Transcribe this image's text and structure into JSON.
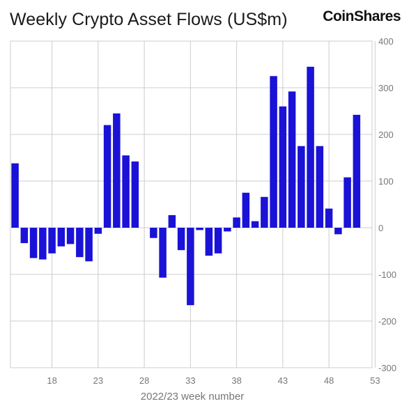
{
  "header": {
    "title": "Weekly Crypto Asset Flows (US$m)",
    "logo_text": "CoinShares"
  },
  "colors": {
    "bar": "#1a12d6",
    "grid": "#cccccc",
    "axis_text": "#777777"
  },
  "chart_data": {
    "type": "bar",
    "title": "Weekly Crypto Asset Flows (US$m)",
    "xlabel": "2022/23 week number",
    "ylabel": "",
    "ylim": [
      -300,
      400
    ],
    "y_ticks": [
      400,
      300,
      200,
      100,
      0,
      -100,
      -200,
      -300
    ],
    "x_tick_labels": [
      "18",
      "23",
      "28",
      "33",
      "38",
      "43",
      "48",
      "53"
    ],
    "categories": [
      14,
      15,
      16,
      17,
      18,
      19,
      20,
      21,
      22,
      23,
      24,
      25,
      26,
      27,
      28,
      29,
      30,
      31,
      32,
      33,
      34,
      35,
      36,
      37,
      38,
      39,
      40,
      41,
      42,
      43,
      44,
      45,
      46,
      47,
      48,
      49,
      50,
      51,
      52
    ],
    "values": [
      138,
      -33,
      -65,
      -68,
      -55,
      -40,
      -35,
      -63,
      -72,
      -13,
      220,
      245,
      155,
      142,
      0,
      -22,
      -107,
      27,
      -48,
      -166,
      -5,
      -60,
      -55,
      -8,
      22,
      75,
      14,
      66,
      325,
      260,
      292,
      175,
      345,
      175,
      41,
      -14,
      108,
      242,
      0
    ],
    "grid": true
  }
}
